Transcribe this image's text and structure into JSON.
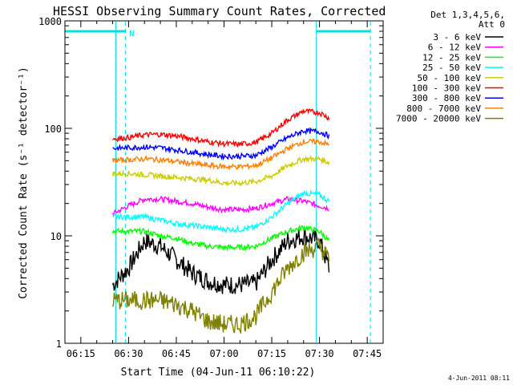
{
  "chart_data": {
    "type": "line",
    "title": "HESSI Observing Summary Count Rates, Corrected",
    "xlabel": "Start Time (04-Jun-11 06:10:22)",
    "ylabel": "Corrected Count Rate (s⁻¹ detector⁻¹)",
    "y_scale": "log",
    "ylim": [
      1,
      1000
    ],
    "xlim": [
      "06:10",
      "07:50"
    ],
    "x_ticks": [
      "06:15",
      "06:30",
      "06:45",
      "07:00",
      "07:15",
      "07:30",
      "07:45"
    ],
    "y_ticks": [
      "1",
      "10",
      "100",
      "1000"
    ],
    "grid": false,
    "legend_position": "right",
    "legend_header": [
      "Det 1,3,4,5,6,",
      "Att 0"
    ],
    "series": [
      {
        "name": "3 - 6 keV",
        "color": "#000000",
        "x": [
          "06:25",
          "06:30",
          "06:35",
          "06:40",
          "06:45",
          "06:50",
          "06:55",
          "07:00",
          "07:05",
          "07:10",
          "07:15",
          "07:20",
          "07:25",
          "07:30",
          "07:33"
        ],
        "values": [
          3.5,
          5,
          9,
          8,
          6,
          4.5,
          3.8,
          3.5,
          3.5,
          3.6,
          6,
          9,
          10,
          9,
          5
        ]
      },
      {
        "name": "6 - 12 keV",
        "color": "#ff00ff",
        "x": [
          "06:25",
          "06:30",
          "06:35",
          "06:40",
          "06:45",
          "06:50",
          "06:55",
          "07:00",
          "07:05",
          "07:10",
          "07:15",
          "07:20",
          "07:25",
          "07:30",
          "07:33"
        ],
        "values": [
          16,
          19,
          22,
          22,
          21,
          20,
          18.5,
          17.5,
          17.5,
          18,
          20,
          22,
          21,
          19,
          18
        ]
      },
      {
        "name": "12 - 25 keV",
        "color": "#00ff00",
        "x": [
          "06:25",
          "06:30",
          "06:35",
          "06:40",
          "06:45",
          "06:50",
          "06:55",
          "07:00",
          "07:05",
          "07:10",
          "07:15",
          "07:20",
          "07:25",
          "07:30",
          "07:33"
        ],
        "values": [
          11,
          11,
          11,
          10,
          9.5,
          8.5,
          8,
          7.8,
          7.8,
          8,
          9.5,
          11,
          12,
          11,
          9
        ]
      },
      {
        "name": "25 - 50 keV",
        "color": "#00ffff",
        "x": [
          "06:25",
          "06:30",
          "06:35",
          "06:40",
          "06:45",
          "06:50",
          "06:55",
          "07:00",
          "07:05",
          "07:10",
          "07:15",
          "07:20",
          "07:25",
          "07:30",
          "07:33"
        ],
        "values": [
          15,
          15,
          15,
          14,
          13,
          12.5,
          12,
          11.5,
          11.5,
          12,
          15,
          20,
          25,
          24,
          21
        ]
      },
      {
        "name": "50 - 100 keV",
        "color": "#cccc00",
        "x": [
          "06:25",
          "06:30",
          "06:35",
          "06:40",
          "06:45",
          "06:50",
          "06:55",
          "07:00",
          "07:05",
          "07:10",
          "07:15",
          "07:20",
          "07:25",
          "07:30",
          "07:33"
        ],
        "values": [
          38,
          38,
          37,
          36,
          35,
          34,
          33,
          31,
          31,
          32,
          36,
          45,
          52,
          52,
          48
        ]
      },
      {
        "name": "100 - 300 keV",
        "color": "#ff0000",
        "x": [
          "06:25",
          "06:30",
          "06:35",
          "06:40",
          "06:45",
          "06:50",
          "06:55",
          "07:00",
          "07:05",
          "07:10",
          "07:15",
          "07:20",
          "07:25",
          "07:30",
          "07:33"
        ],
        "values": [
          80,
          82,
          87,
          88,
          85,
          80,
          75,
          72,
          71,
          74,
          90,
          120,
          145,
          140,
          125
        ]
      },
      {
        "name": "300 - 800 keV",
        "color": "#0000ff",
        "x": [
          "06:25",
          "06:30",
          "06:35",
          "06:40",
          "06:45",
          "06:50",
          "06:55",
          "07:00",
          "07:05",
          "07:10",
          "07:15",
          "07:20",
          "07:25",
          "07:30",
          "07:33"
        ],
        "values": [
          65,
          66,
          67,
          66,
          63,
          60,
          57,
          55,
          55,
          56,
          67,
          82,
          95,
          93,
          85
        ]
      },
      {
        "name": "800 - 7000 keV",
        "color": "#ff8000",
        "x": [
          "06:25",
          "06:30",
          "06:35",
          "06:40",
          "06:45",
          "06:50",
          "06:55",
          "07:00",
          "07:05",
          "07:10",
          "07:15",
          "07:20",
          "07:25",
          "07:30",
          "07:33"
        ],
        "values": [
          50,
          51,
          52,
          51,
          49,
          47,
          45,
          44,
          44,
          45,
          53,
          65,
          75,
          75,
          70
        ]
      },
      {
        "name": "7000 - 20000 keV",
        "color": "#808000",
        "x": [
          "06:25",
          "06:30",
          "06:35",
          "06:40",
          "06:45",
          "06:50",
          "06:55",
          "07:00",
          "07:05",
          "07:10",
          "07:15",
          "07:20",
          "07:25",
          "07:30",
          "07:33"
        ],
        "values": [
          2.5,
          2.5,
          2.5,
          2.5,
          2.3,
          2,
          1.6,
          1.5,
          1.5,
          1.8,
          3,
          5,
          7,
          8,
          6
        ]
      }
    ],
    "annotations": [
      {
        "text": "N",
        "x": "06:29"
      }
    ],
    "vertical_markers": [
      {
        "x": "06:26",
        "style": "solid"
      },
      {
        "x": "06:29",
        "style": "dashed"
      },
      {
        "x": "07:29",
        "style": "solid"
      },
      {
        "x": "07:46",
        "style": "dashed"
      }
    ],
    "night_bars": [
      {
        "start": "06:10",
        "end": "06:29"
      },
      {
        "start": "07:29",
        "end": "07:46"
      }
    ],
    "marker_color": "#00e0e0",
    "footer": "4-Jun-2011 08:11"
  }
}
